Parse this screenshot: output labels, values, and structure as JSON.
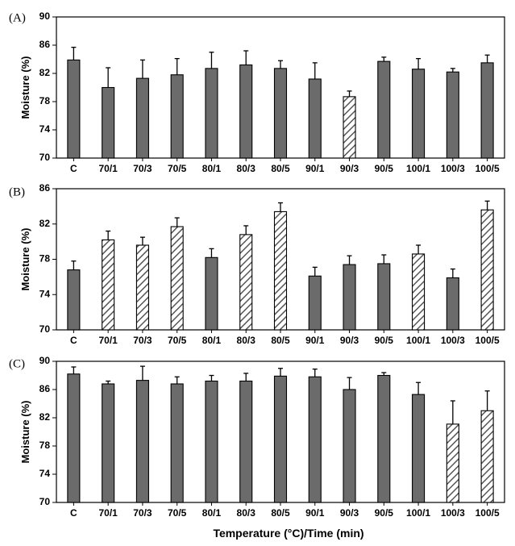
{
  "chart_data": [
    {
      "type": "bar",
      "panel_label": "(A)",
      "ylabel": "Moisture (%)",
      "xlabel": "",
      "ylim": [
        70,
        90
      ],
      "yticks": [
        70,
        74,
        78,
        82,
        86,
        90
      ],
      "categories": [
        "C",
        "70/1",
        "70/3",
        "70/5",
        "80/1",
        "80/3",
        "80/5",
        "90/1",
        "90/3",
        "90/5",
        "100/1",
        "100/3",
        "100/5"
      ],
      "values": [
        83.9,
        80.0,
        81.3,
        81.8,
        82.7,
        83.2,
        82.7,
        81.2,
        78.7,
        83.7,
        82.6,
        82.2,
        83.5
      ],
      "errors": [
        1.8,
        2.8,
        2.6,
        2.3,
        2.3,
        2.0,
        1.1,
        2.3,
        0.8,
        0.6,
        1.5,
        0.5,
        1.1
      ],
      "hatched": [
        false,
        false,
        false,
        false,
        false,
        false,
        false,
        false,
        true,
        false,
        false,
        false,
        false
      ],
      "colors": {
        "solid": "#6b6b6b",
        "hatch": "#555555",
        "outline": "#000000"
      }
    },
    {
      "type": "bar",
      "panel_label": "(B)",
      "ylabel": "Moisture (%)",
      "xlabel": "",
      "ylim": [
        70,
        86
      ],
      "yticks": [
        70,
        74,
        78,
        82,
        86
      ],
      "categories": [
        "C",
        "70/1",
        "70/3",
        "70/5",
        "80/1",
        "80/3",
        "80/5",
        "90/1",
        "90/3",
        "90/5",
        "100/1",
        "100/3",
        "100/5"
      ],
      "values": [
        76.8,
        80.2,
        79.6,
        81.7,
        78.2,
        80.8,
        83.4,
        76.1,
        77.4,
        77.5,
        78.6,
        75.9,
        83.6
      ],
      "errors": [
        1.0,
        1.0,
        0.9,
        1.0,
        1.0,
        1.0,
        1.0,
        1.0,
        1.0,
        1.0,
        1.0,
        1.0,
        1.0
      ],
      "hatched": [
        false,
        true,
        true,
        true,
        false,
        true,
        true,
        false,
        false,
        false,
        true,
        false,
        true
      ],
      "colors": {
        "solid": "#6b6b6b",
        "hatch": "#555555",
        "outline": "#000000"
      }
    },
    {
      "type": "bar",
      "panel_label": "(C)",
      "ylabel": "Moisture (%)",
      "xlabel": "Temperature (°C)/Time (min)",
      "ylim": [
        70,
        90
      ],
      "yticks": [
        70,
        74,
        78,
        82,
        86,
        90
      ],
      "categories": [
        "C",
        "70/1",
        "70/3",
        "70/5",
        "80/1",
        "80/3",
        "80/5",
        "90/1",
        "90/3",
        "90/5",
        "100/1",
        "100/3",
        "100/5"
      ],
      "values": [
        88.2,
        86.8,
        87.3,
        86.8,
        87.2,
        87.2,
        87.9,
        87.8,
        86.0,
        88.0,
        85.3,
        81.1,
        83.0
      ],
      "errors": [
        1.0,
        0.4,
        2.0,
        1.0,
        0.8,
        1.1,
        1.1,
        1.1,
        1.7,
        0.4,
        1.7,
        3.3,
        2.8
      ],
      "hatched": [
        false,
        false,
        false,
        false,
        false,
        false,
        false,
        false,
        false,
        false,
        false,
        true,
        true
      ],
      "colors": {
        "solid": "#6b6b6b",
        "hatch": "#555555",
        "outline": "#000000"
      }
    }
  ]
}
